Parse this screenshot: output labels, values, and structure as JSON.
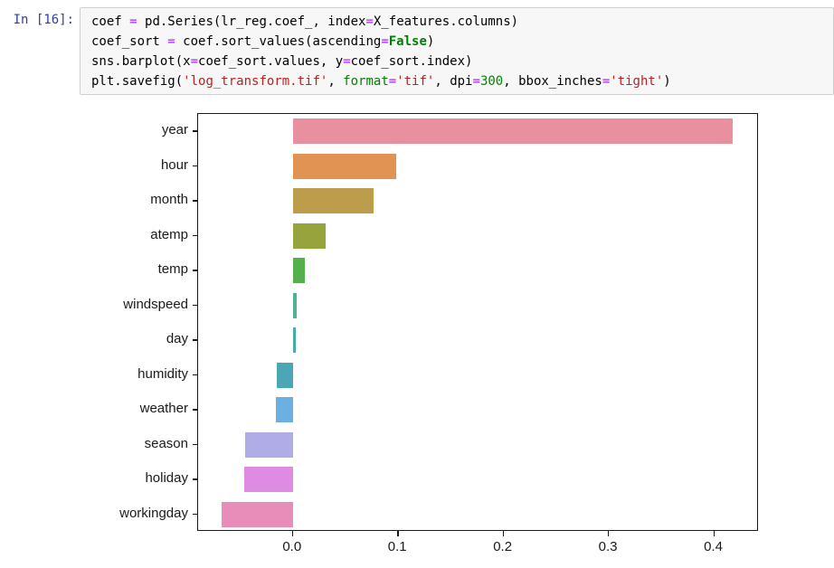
{
  "notebook": {
    "prompt": "In [16]:",
    "prompt_color": "#303F9F",
    "code_lines": [
      [
        {
          "t": "coef ",
          "c": "plain"
        },
        {
          "t": "=",
          "c": "op"
        },
        {
          "t": " pd.Series(lr_reg.coef_, index",
          "c": "plain"
        },
        {
          "t": "=",
          "c": "op"
        },
        {
          "t": "X_features.columns)",
          "c": "plain"
        }
      ],
      [
        {
          "t": "coef_sort ",
          "c": "plain"
        },
        {
          "t": "=",
          "c": "op"
        },
        {
          "t": " coef.sort_values(ascending",
          "c": "plain"
        },
        {
          "t": "=",
          "c": "op"
        },
        {
          "t": "False",
          "c": "kw"
        },
        {
          "t": ")",
          "c": "plain"
        }
      ],
      [
        {
          "t": "sns.barplot(x",
          "c": "plain"
        },
        {
          "t": "=",
          "c": "op"
        },
        {
          "t": "coef_sort.values, y",
          "c": "plain"
        },
        {
          "t": "=",
          "c": "op"
        },
        {
          "t": "coef_sort.index)",
          "c": "plain"
        }
      ],
      [
        {
          "t": "plt.savefig(",
          "c": "plain"
        },
        {
          "t": "'log_transform.tif'",
          "c": "str"
        },
        {
          "t": ", ",
          "c": "plain"
        },
        {
          "t": "format",
          "c": "builtin"
        },
        {
          "t": "=",
          "c": "op"
        },
        {
          "t": "'tif'",
          "c": "str"
        },
        {
          "t": ", dpi",
          "c": "plain"
        },
        {
          "t": "=",
          "c": "op"
        },
        {
          "t": "300",
          "c": "num"
        },
        {
          "t": ", bbox_inches",
          "c": "plain"
        },
        {
          "t": "=",
          "c": "op"
        },
        {
          "t": "'tight'",
          "c": "str"
        },
        {
          "t": ")",
          "c": "plain"
        }
      ]
    ],
    "token_colors": {
      "plain": "#000000",
      "op": "#AA22FF",
      "kw": "#008000",
      "builtin": "#008000",
      "num": "#008800",
      "str": "#BA2121"
    }
  },
  "chart_data": {
    "type": "bar",
    "orientation": "horizontal",
    "title": "",
    "xlabel": "",
    "ylabel": "",
    "categories": [
      "year",
      "hour",
      "month",
      "atemp",
      "temp",
      "windspeed",
      "day",
      "humidity",
      "weather",
      "season",
      "holiday",
      "workingday"
    ],
    "values": [
      0.418,
      0.098,
      0.077,
      0.031,
      0.011,
      0.004,
      0.003,
      -0.015,
      -0.016,
      -0.045,
      -0.046,
      -0.068
    ],
    "bar_colors": [
      "#e8909f",
      "#e09352",
      "#bb9d4c",
      "#97a43c",
      "#55af4c",
      "#4db28f",
      "#46acaa",
      "#4ba7b8",
      "#6cb0e2",
      "#b0ace8",
      "#de8be4",
      "#e88cba"
    ],
    "xticks": [
      0.0,
      0.1,
      0.2,
      0.3,
      0.4
    ],
    "xtick_labels": [
      "0.0",
      "0.1",
      "0.2",
      "0.3",
      "0.4"
    ],
    "xlim": [
      -0.09,
      0.4425
    ],
    "grid": false,
    "legend": null,
    "axis_color": "#1a1a1a"
  }
}
